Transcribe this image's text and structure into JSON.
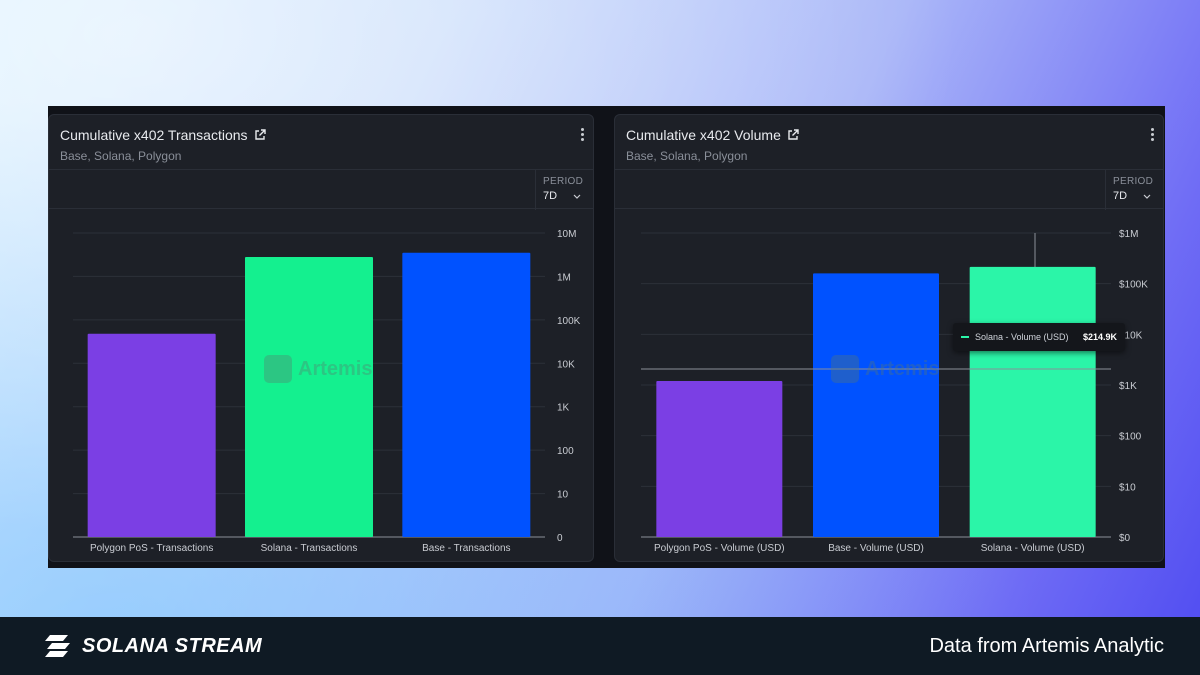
{
  "charts": [
    {
      "title": "Cumulative x402 Transactions",
      "subtitle": "Base, Solana, Polygon",
      "period_label": "PERIOD",
      "period_value": "7D",
      "watermark": "Artemis"
    },
    {
      "title": "Cumulative x402 Volume",
      "subtitle": "Base, Solana, Polygon",
      "period_label": "PERIOD",
      "period_value": "7D",
      "watermark": "Artemis",
      "tooltip": {
        "label": "Solana - Volume (USD)",
        "value": "$214.9K"
      }
    }
  ],
  "chart_data": [
    {
      "type": "bar",
      "title": "Cumulative x402 Transactions",
      "yscale": "log",
      "ylim": [
        0,
        10000000
      ],
      "yticks": [
        0,
        10,
        100,
        1000,
        10000,
        100000,
        1000000,
        10000000
      ],
      "ytick_labels": [
        "0",
        "10",
        "100",
        "1K",
        "10K",
        "100K",
        "1M",
        "10M"
      ],
      "categories": [
        "Polygon PoS - Transactions",
        "Solana - Transactions",
        "Base - Transactions"
      ],
      "values": [
        48000,
        2800000,
        3500000
      ],
      "colors": [
        "#7b3fe4",
        "#14f08f",
        "#0052ff"
      ],
      "grid": true
    },
    {
      "type": "bar",
      "title": "Cumulative x402 Volume",
      "yscale": "log",
      "ylim": [
        0,
        1000000
      ],
      "yticks": [
        0,
        10,
        100,
        1000,
        10000,
        100000,
        1000000
      ],
      "ytick_labels": [
        "$0",
        "$10",
        "$100",
        "$1K",
        "$10K",
        "$100K",
        "$1M"
      ],
      "categories": [
        "Polygon PoS - Volume (USD)",
        "Base - Volume (USD)",
        "Solana - Volume (USD)"
      ],
      "values": [
        1200,
        160000,
        214900
      ],
      "colors": [
        "#7b3fe4",
        "#0052ff",
        "#2bf5a8"
      ],
      "grid": true
    }
  ],
  "footer": {
    "brand": "SOLANA STREAM",
    "note": "Data from Artemis Analytic"
  }
}
